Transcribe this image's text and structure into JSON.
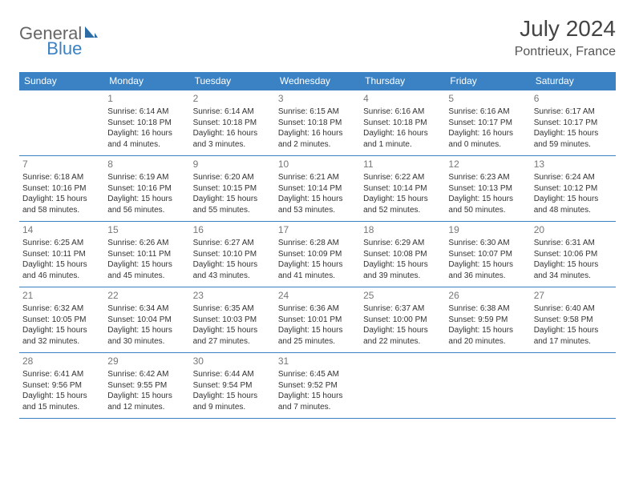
{
  "brand": {
    "part1": "General",
    "part2": "Blue"
  },
  "title": "July 2024",
  "location": "Pontrieux, France",
  "colors": {
    "header_bg": "#3b82c4",
    "header_text": "#ffffff",
    "cell_border": "#3b82c4",
    "daynum_color": "#777777",
    "text_color": "#333333",
    "background": "#ffffff"
  },
  "typography": {
    "title_fontsize": 28,
    "location_fontsize": 16,
    "dayheader_fontsize": 12,
    "daynum_fontsize": 12,
    "cell_fontsize": 10
  },
  "layout": {
    "columns": 7,
    "rows": 5
  },
  "day_headers": [
    "Sunday",
    "Monday",
    "Tuesday",
    "Wednesday",
    "Thursday",
    "Friday",
    "Saturday"
  ],
  "weeks": [
    [
      null,
      {
        "n": "1",
        "sunrise": "6:14 AM",
        "sunset": "10:18 PM",
        "daylight": "16 hours and 4 minutes."
      },
      {
        "n": "2",
        "sunrise": "6:14 AM",
        "sunset": "10:18 PM",
        "daylight": "16 hours and 3 minutes."
      },
      {
        "n": "3",
        "sunrise": "6:15 AM",
        "sunset": "10:18 PM",
        "daylight": "16 hours and 2 minutes."
      },
      {
        "n": "4",
        "sunrise": "6:16 AM",
        "sunset": "10:18 PM",
        "daylight": "16 hours and 1 minute."
      },
      {
        "n": "5",
        "sunrise": "6:16 AM",
        "sunset": "10:17 PM",
        "daylight": "16 hours and 0 minutes."
      },
      {
        "n": "6",
        "sunrise": "6:17 AM",
        "sunset": "10:17 PM",
        "daylight": "15 hours and 59 minutes."
      }
    ],
    [
      {
        "n": "7",
        "sunrise": "6:18 AM",
        "sunset": "10:16 PM",
        "daylight": "15 hours and 58 minutes."
      },
      {
        "n": "8",
        "sunrise": "6:19 AM",
        "sunset": "10:16 PM",
        "daylight": "15 hours and 56 minutes."
      },
      {
        "n": "9",
        "sunrise": "6:20 AM",
        "sunset": "10:15 PM",
        "daylight": "15 hours and 55 minutes."
      },
      {
        "n": "10",
        "sunrise": "6:21 AM",
        "sunset": "10:14 PM",
        "daylight": "15 hours and 53 minutes."
      },
      {
        "n": "11",
        "sunrise": "6:22 AM",
        "sunset": "10:14 PM",
        "daylight": "15 hours and 52 minutes."
      },
      {
        "n": "12",
        "sunrise": "6:23 AM",
        "sunset": "10:13 PM",
        "daylight": "15 hours and 50 minutes."
      },
      {
        "n": "13",
        "sunrise": "6:24 AM",
        "sunset": "10:12 PM",
        "daylight": "15 hours and 48 minutes."
      }
    ],
    [
      {
        "n": "14",
        "sunrise": "6:25 AM",
        "sunset": "10:11 PM",
        "daylight": "15 hours and 46 minutes."
      },
      {
        "n": "15",
        "sunrise": "6:26 AM",
        "sunset": "10:11 PM",
        "daylight": "15 hours and 45 minutes."
      },
      {
        "n": "16",
        "sunrise": "6:27 AM",
        "sunset": "10:10 PM",
        "daylight": "15 hours and 43 minutes."
      },
      {
        "n": "17",
        "sunrise": "6:28 AM",
        "sunset": "10:09 PM",
        "daylight": "15 hours and 41 minutes."
      },
      {
        "n": "18",
        "sunrise": "6:29 AM",
        "sunset": "10:08 PM",
        "daylight": "15 hours and 39 minutes."
      },
      {
        "n": "19",
        "sunrise": "6:30 AM",
        "sunset": "10:07 PM",
        "daylight": "15 hours and 36 minutes."
      },
      {
        "n": "20",
        "sunrise": "6:31 AM",
        "sunset": "10:06 PM",
        "daylight": "15 hours and 34 minutes."
      }
    ],
    [
      {
        "n": "21",
        "sunrise": "6:32 AM",
        "sunset": "10:05 PM",
        "daylight": "15 hours and 32 minutes."
      },
      {
        "n": "22",
        "sunrise": "6:34 AM",
        "sunset": "10:04 PM",
        "daylight": "15 hours and 30 minutes."
      },
      {
        "n": "23",
        "sunrise": "6:35 AM",
        "sunset": "10:03 PM",
        "daylight": "15 hours and 27 minutes."
      },
      {
        "n": "24",
        "sunrise": "6:36 AM",
        "sunset": "10:01 PM",
        "daylight": "15 hours and 25 minutes."
      },
      {
        "n": "25",
        "sunrise": "6:37 AM",
        "sunset": "10:00 PM",
        "daylight": "15 hours and 22 minutes."
      },
      {
        "n": "26",
        "sunrise": "6:38 AM",
        "sunset": "9:59 PM",
        "daylight": "15 hours and 20 minutes."
      },
      {
        "n": "27",
        "sunrise": "6:40 AM",
        "sunset": "9:58 PM",
        "daylight": "15 hours and 17 minutes."
      }
    ],
    [
      {
        "n": "28",
        "sunrise": "6:41 AM",
        "sunset": "9:56 PM",
        "daylight": "15 hours and 15 minutes."
      },
      {
        "n": "29",
        "sunrise": "6:42 AM",
        "sunset": "9:55 PM",
        "daylight": "15 hours and 12 minutes."
      },
      {
        "n": "30",
        "sunrise": "6:44 AM",
        "sunset": "9:54 PM",
        "daylight": "15 hours and 9 minutes."
      },
      {
        "n": "31",
        "sunrise": "6:45 AM",
        "sunset": "9:52 PM",
        "daylight": "15 hours and 7 minutes."
      },
      null,
      null,
      null
    ]
  ],
  "labels": {
    "sunrise": "Sunrise:",
    "sunset": "Sunset:",
    "daylight": "Daylight:"
  }
}
